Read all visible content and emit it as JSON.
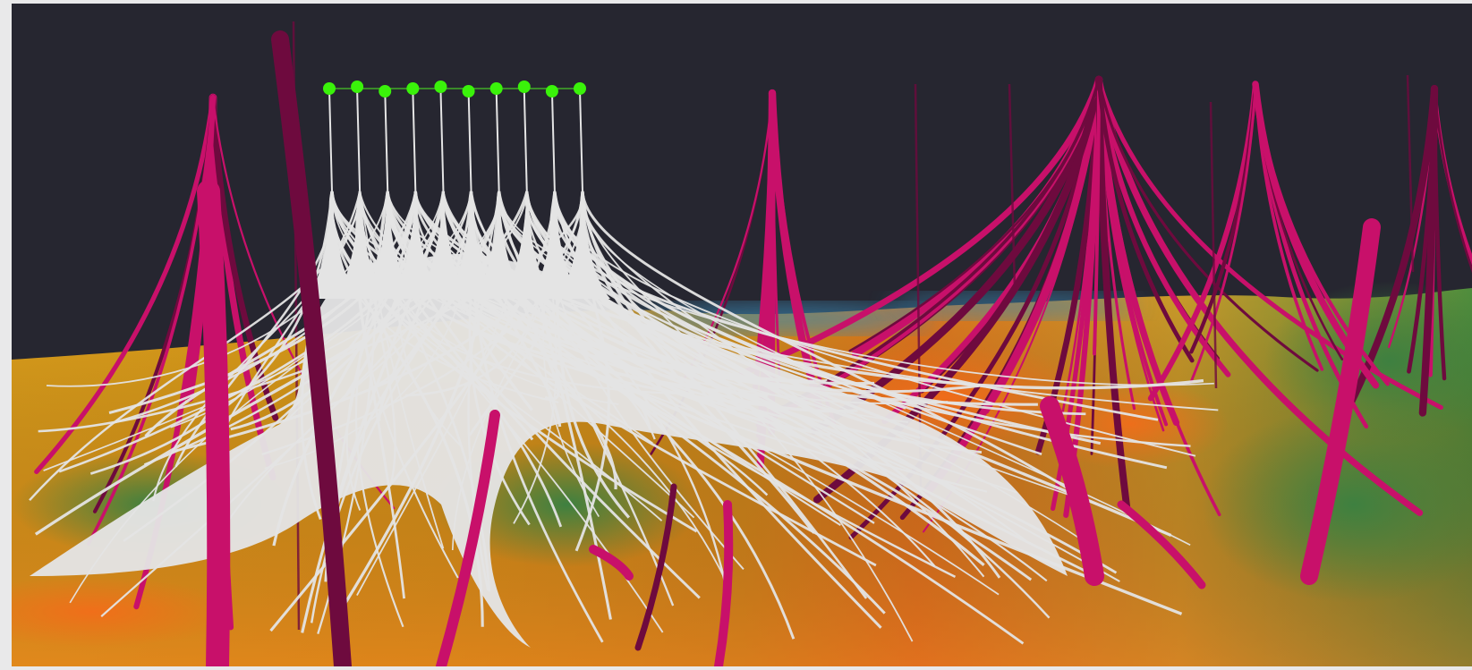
{
  "scene": {
    "background_color": "#262630",
    "frame_color": "#e9e9ea",
    "colors": {
      "wells_selected": "#e4e4e4",
      "wells_other": "#c8106a",
      "wells_dark": "#6e0a3e",
      "surface_yellow": "#d9a21c",
      "surface_orange": "#e3751f",
      "surface_green": "#4d8a3c",
      "surface_blue": "#3b86b0",
      "well_markers": "#3af20a"
    },
    "selected_well_marker_count": 10
  }
}
